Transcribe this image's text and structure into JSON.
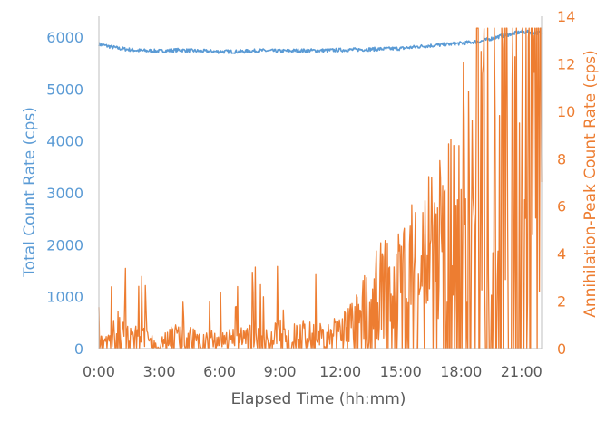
{
  "chart_data": {
    "type": "line",
    "xlabel": "Elapsed Time (hh:mm)",
    "ylabel_left": "Total Count Rate (cps)",
    "ylabel_right": "Annihilation-Peak Count Rate (cps)",
    "x_unit": "hours",
    "xlim": [
      0,
      22
    ],
    "ylim_left": [
      0,
      6400
    ],
    "ylim_right": [
      0,
      14
    ],
    "x_ticks": [
      "0:00",
      "3:00",
      "6:00",
      "9:00",
      "12:00",
      "15:00",
      "18:00",
      "21:00"
    ],
    "y_ticks_left": [
      "0",
      "1000",
      "2000",
      "3000",
      "4000",
      "5000",
      "6000"
    ],
    "y_ticks_right": [
      "0",
      "2",
      "4",
      "6",
      "8",
      "10",
      "12",
      "14"
    ],
    "grid": false,
    "colors": {
      "total": "#5b9bd5",
      "annihilation": "#ed7d31"
    },
    "series": [
      {
        "key": "total",
        "axis": "left",
        "points": [
          [
            0,
            5860
          ],
          [
            1,
            5780
          ],
          [
            2,
            5740
          ],
          [
            3,
            5730
          ],
          [
            4,
            5750
          ],
          [
            5,
            5730
          ],
          [
            6,
            5720
          ],
          [
            7,
            5720
          ],
          [
            8,
            5740
          ],
          [
            9,
            5730
          ],
          [
            10,
            5740
          ],
          [
            11,
            5740
          ],
          [
            12,
            5750
          ],
          [
            13,
            5760
          ],
          [
            14,
            5770
          ],
          [
            15,
            5780
          ],
          [
            16,
            5820
          ],
          [
            17,
            5850
          ],
          [
            18,
            5880
          ],
          [
            19,
            5920
          ],
          [
            20,
            6020
          ],
          [
            21,
            6100
          ],
          [
            22,
            6080
          ]
        ]
      },
      {
        "key": "annihilation",
        "axis": "right",
        "points": [
          [
            0,
            0.4
          ],
          [
            0.5,
            0.3
          ],
          [
            1,
            1.0
          ],
          [
            1.5,
            0.4
          ],
          [
            2,
            0.6
          ],
          [
            2.5,
            0.3
          ],
          [
            3,
            0.2
          ],
          [
            3.5,
            0.5
          ],
          [
            4,
            0.6
          ],
          [
            4.5,
            0.7
          ],
          [
            5,
            0.3
          ],
          [
            5.5,
            0.4
          ],
          [
            6,
            0.3
          ],
          [
            6.5,
            0.4
          ],
          [
            7,
            0.5
          ],
          [
            7.5,
            0.5
          ],
          [
            8,
            0.4
          ],
          [
            8.5,
            0.5
          ],
          [
            9,
            0.6
          ],
          [
            9.5,
            0.5
          ],
          [
            10,
            0.6
          ],
          [
            10.5,
            0.6
          ],
          [
            11,
            0.6
          ],
          [
            11.5,
            0.6
          ],
          [
            12,
            0.7
          ],
          [
            12.5,
            1.0
          ],
          [
            13,
            1.4
          ],
          [
            13.5,
            1.8
          ],
          [
            14,
            2.2
          ],
          [
            14.5,
            2.5
          ],
          [
            15,
            2.6
          ],
          [
            15.5,
            3.3
          ],
          [
            16,
            3.8
          ],
          [
            16.5,
            3.9
          ],
          [
            17,
            4.2
          ],
          [
            17.5,
            4.7
          ],
          [
            18,
            6.0
          ],
          [
            18.5,
            7.0
          ],
          [
            19,
            8.3
          ],
          [
            19.5,
            9.0
          ],
          [
            20,
            9.5
          ],
          [
            20.5,
            9.7
          ],
          [
            21,
            10.2
          ],
          [
            21.5,
            10.4
          ],
          [
            22,
            10.0
          ]
        ]
      }
    ]
  }
}
